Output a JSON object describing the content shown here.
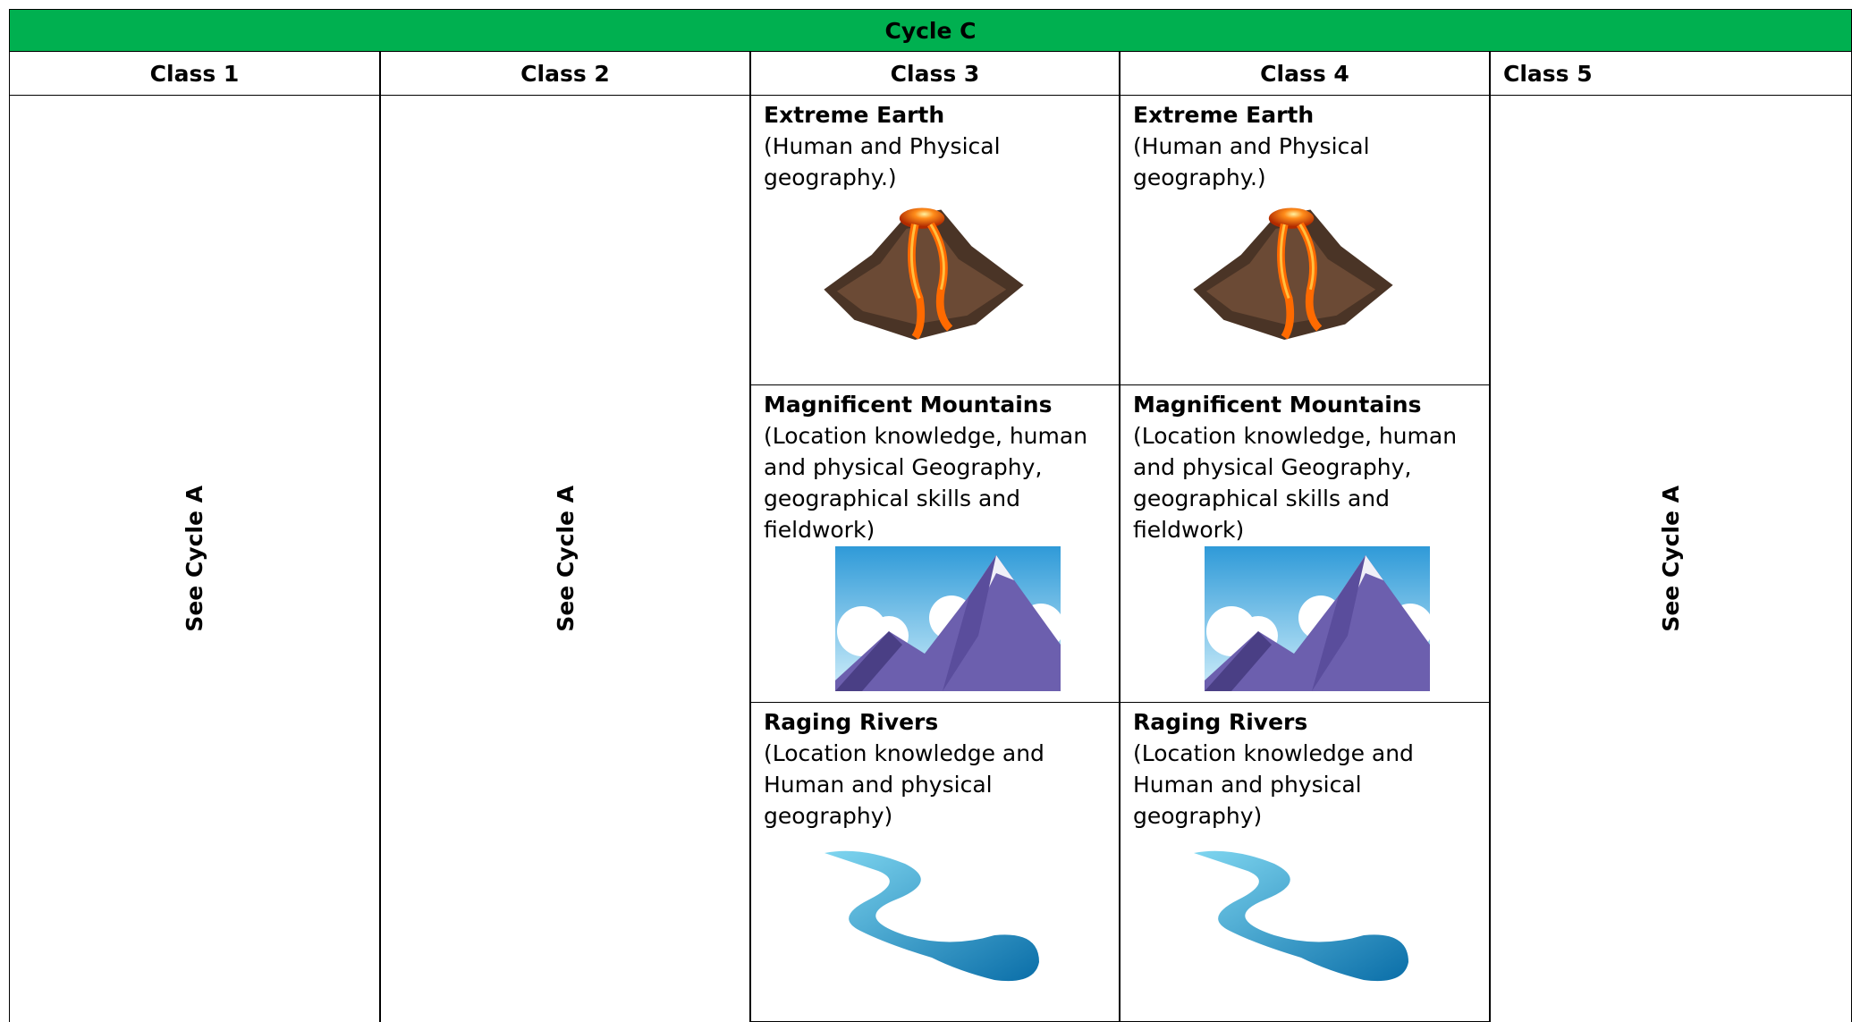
{
  "header": {
    "title": "Cycle C"
  },
  "columns": [
    {
      "name": "Class 1",
      "text": "See Cycle A"
    },
    {
      "name": "Class 2",
      "text": "See Cycle A"
    },
    {
      "name": "Class 3",
      "topics": [
        {
          "title": "Extreme Earth",
          "description": "(Human and Physical geography.)"
        },
        {
          "title": "Magnificent Mountains",
          "description": "(Location knowledge, human and physical Geography, geographical skills and fieldwork)"
        },
        {
          "title": "Raging Rivers",
          "description": "(Location knowledge and Human and physical geography)"
        }
      ]
    },
    {
      "name": "Class 4",
      "topics": [
        {
          "title": "Extreme Earth",
          "description": "(Human and Physical geography.)"
        },
        {
          "title": "Magnificent Mountains",
          "description": "(Location knowledge, human and physical Geography, geographical skills and fieldwork)"
        },
        {
          "title": "Raging Rivers",
          "description": "(Location knowledge and Human and physical geography)"
        }
      ]
    },
    {
      "name": "Class 5",
      "text": "See Cycle A"
    }
  ]
}
